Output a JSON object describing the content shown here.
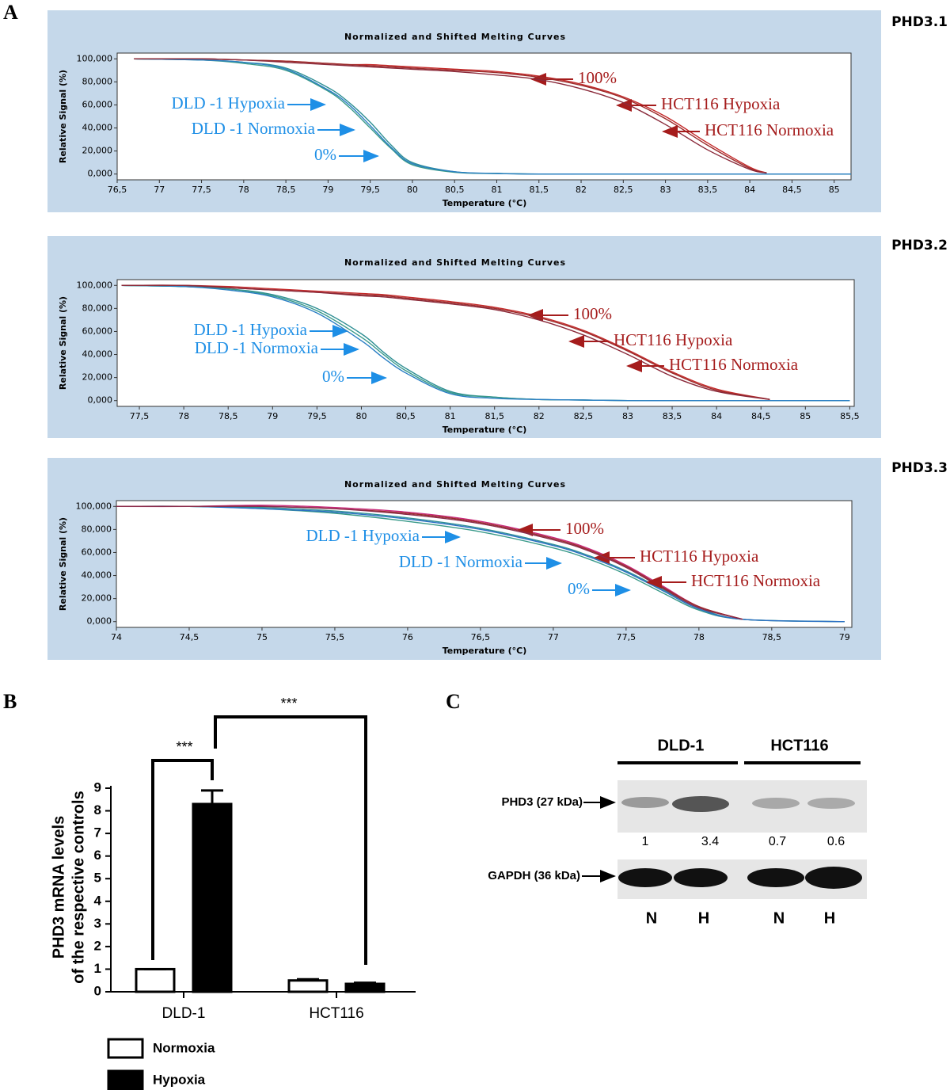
{
  "panels": [
    "A",
    "B",
    "C"
  ],
  "chart_data": [
    {
      "type": "line",
      "title": "Normalized and Shifted Melting Curves",
      "subtitle": "PHD3.1",
      "xlabel": "Temperature (°C)",
      "ylabel": "Relative Signal (%)",
      "x": [
        76.7,
        77.5,
        78,
        78.5,
        79,
        79.25,
        79.5,
        79.75,
        80,
        80.5,
        81,
        81.5,
        82,
        82.5,
        83,
        83.5,
        84,
        84.2,
        85.2
      ],
      "series": [
        {
          "name": "DLD -1 Hypoxia",
          "color": "#2f8f94",
          "values": [
            100,
            99,
            97,
            92,
            75,
            62,
            45,
            25,
            10,
            2,
            0.5,
            0,
            0,
            0,
            0,
            0,
            0,
            0,
            0
          ]
        },
        {
          "name": "DLD -1 Normoxia",
          "color": "#3a9a8a",
          "values": [
            100,
            99,
            96,
            90,
            72,
            58,
            40,
            22,
            8,
            1.5,
            0.5,
            0,
            0,
            0,
            0,
            0,
            0,
            0,
            0
          ]
        },
        {
          "name": "0%",
          "color": "#2a7fc4",
          "values": [
            100,
            99,
            97,
            91,
            73,
            60,
            42,
            23,
            9,
            2,
            0.5,
            0,
            0,
            0,
            0,
            0,
            0,
            0,
            0
          ]
        },
        {
          "name": "100%",
          "color": "#c42a2a",
          "values": [
            100,
            100,
            99,
            98,
            96,
            95,
            95,
            94,
            93,
            91,
            89,
            85,
            78,
            67,
            50,
            27,
            6,
            1,
            null
          ]
        },
        {
          "name": "HCT116 Hypoxia",
          "color": "#9b2b2b",
          "values": [
            100,
            100,
            99,
            98,
            96,
            95,
            94,
            93,
            92,
            90,
            88,
            84,
            77,
            66,
            48,
            25,
            5,
            1,
            null
          ]
        },
        {
          "name": "HCT116 Normoxia",
          "color": "#8a2a3a",
          "values": [
            100,
            100,
            99,
            97,
            95,
            94,
            93,
            92,
            91,
            89,
            86,
            82,
            74,
            62,
            43,
            21,
            4,
            1,
            null
          ]
        }
      ],
      "xlim": [
        76.5,
        85.2
      ],
      "xticks": [
        {
          "value": 76.5,
          "label": "76,5"
        },
        77,
        {
          "value": 77.5,
          "label": "77,5"
        },
        78,
        {
          "value": 78.5,
          "label": "78,5"
        },
        79,
        {
          "value": 79.5,
          "label": "79,5"
        },
        80,
        {
          "value": 80.5,
          "label": "80,5"
        },
        81,
        {
          "value": 81.5,
          "label": "81,5"
        },
        82,
        {
          "value": 82.5,
          "label": "82,5"
        },
        83,
        {
          "value": 83.5,
          "label": "83,5"
        },
        84,
        {
          "value": 84.5,
          "label": "84,5"
        },
        85
      ],
      "ylim": [
        -5,
        105
      ],
      "yticks": [
        {
          "value": 0,
          "label": "0,000"
        },
        {
          "value": 20,
          "label": "20,000"
        },
        {
          "value": 40,
          "label": "40,000"
        },
        {
          "value": 60,
          "label": "60,000"
        },
        {
          "value": 80,
          "label": "80,000"
        },
        {
          "value": 100,
          "label": "100,000"
        }
      ]
    },
    {
      "type": "line",
      "title": "Normalized and Shifted Melting Curves",
      "subtitle": "PHD3.2",
      "xlabel": "Temperature (°C)",
      "ylabel": "Relative Signal (%)",
      "x": [
        77.3,
        78,
        78.5,
        79,
        79.5,
        80,
        80.25,
        80.5,
        81,
        81.5,
        82,
        82.5,
        83,
        83.5,
        84,
        84.6,
        85.5
      ],
      "series": [
        {
          "name": "DLD -1 Hypoxia",
          "color": "#2f8f94",
          "values": [
            100,
            99,
            97,
            92,
            80,
            58,
            42,
            28,
            8,
            3,
            1,
            0.5,
            0,
            0,
            0,
            0,
            0
          ]
        },
        {
          "name": "DLD -1 Normoxia",
          "color": "#3a9a8a",
          "values": [
            100,
            99,
            97,
            91,
            78,
            55,
            40,
            26,
            7,
            3,
            1,
            0.5,
            0,
            0,
            0,
            0,
            0
          ]
        },
        {
          "name": "0%",
          "color": "#2a7fc4",
          "values": [
            100,
            99,
            96,
            90,
            76,
            52,
            37,
            24,
            6,
            2,
            1,
            0.5,
            0,
            0,
            0,
            0,
            0
          ]
        },
        {
          "name": "100%",
          "color": "#c42a2a",
          "values": [
            100,
            100,
            99,
            97,
            95,
            93,
            92,
            90,
            86,
            81,
            73,
            61,
            44,
            25,
            10,
            1,
            null
          ]
        },
        {
          "name": "HCT116 Hypoxia",
          "color": "#9b2b2b",
          "values": [
            100,
            100,
            98,
            96,
            94,
            92,
            91,
            89,
            85,
            80,
            72,
            60,
            43,
            24,
            9,
            1,
            null
          ]
        },
        {
          "name": "HCT116 Normoxia",
          "color": "#8a2a3a",
          "values": [
            100,
            100,
            98,
            96,
            94,
            91,
            90,
            88,
            84,
            79,
            70,
            57,
            40,
            21,
            8,
            1,
            null
          ]
        }
      ],
      "xlim": [
        77.25,
        85.55
      ],
      "xticks": [
        {
          "value": 77.5,
          "label": "77,5"
        },
        78,
        {
          "value": 78.5,
          "label": "78,5"
        },
        79,
        {
          "value": 79.5,
          "label": "79,5"
        },
        80,
        {
          "value": 80.5,
          "label": "80,5"
        },
        81,
        {
          "value": 81.5,
          "label": "81,5"
        },
        82,
        {
          "value": 82.5,
          "label": "82,5"
        },
        83,
        {
          "value": 83.5,
          "label": "83,5"
        },
        84,
        {
          "value": 84.5,
          "label": "84,5"
        },
        85,
        {
          "value": 85.5,
          "label": "85,5"
        }
      ],
      "ylim": [
        -5,
        105
      ],
      "yticks": [
        {
          "value": 0,
          "label": "0,000"
        },
        {
          "value": 20,
          "label": "20,000"
        },
        {
          "value": 40,
          "label": "40,000"
        },
        {
          "value": 60,
          "label": "60,000"
        },
        {
          "value": 80,
          "label": "80,000"
        },
        {
          "value": 100,
          "label": "100,000"
        }
      ]
    },
    {
      "type": "line",
      "title": "Normalized and Shifted Melting Curves",
      "subtitle": "PHD3.3",
      "xlabel": "Temperature (°C)",
      "ylabel": "Relative Signal (%)",
      "x": [
        74,
        74.5,
        75,
        75.5,
        76,
        76.5,
        77,
        77.25,
        77.5,
        77.75,
        78,
        78.3,
        79
      ],
      "series": [
        {
          "name": "DLD -1 Hypoxia",
          "color": "#2f8f94",
          "values": [
            100,
            100,
            99,
            96,
            90,
            81,
            67,
            57,
            44,
            28,
            12,
            2,
            0
          ]
        },
        {
          "name": "DLD -1 Normoxia",
          "color": "#3a9a8a",
          "values": [
            100,
            100,
            98,
            94,
            87,
            78,
            64,
            54,
            41,
            25,
            10,
            2,
            0
          ]
        },
        {
          "name": "0%",
          "color": "#2a6fc4",
          "values": [
            100,
            100,
            98,
            95,
            89,
            80,
            66,
            56,
            43,
            27,
            11,
            2,
            0
          ]
        },
        {
          "name": "100%",
          "color": "#c8287a",
          "values": [
            100,
            100,
            101,
            99,
            95,
            87,
            73,
            63,
            49,
            31,
            13,
            2,
            null
          ]
        },
        {
          "name": "HCT116 Hypoxia",
          "color": "#9b2b2b",
          "values": [
            100,
            100,
            100,
            98,
            94,
            86,
            72,
            62,
            48,
            30,
            13,
            2,
            null
          ]
        },
        {
          "name": "HCT116 Normoxia",
          "color": "#8a2a4a",
          "values": [
            100,
            100,
            100,
            98,
            93,
            85,
            71,
            61,
            47,
            29,
            12,
            2,
            null
          ]
        }
      ],
      "xlim": [
        74,
        79.05
      ],
      "xticks": [
        74,
        {
          "value": 74.5,
          "label": "74,5"
        },
        75,
        {
          "value": 75.5,
          "label": "75,5"
        },
        76,
        {
          "value": 76.5,
          "label": "76,5"
        },
        77,
        {
          "value": 77.5,
          "label": "77,5"
        },
        78,
        {
          "value": 78.5,
          "label": "78,5"
        },
        79
      ],
      "ylim": [
        -5,
        105
      ],
      "yticks": [
        {
          "value": 0,
          "label": "0,000"
        },
        {
          "value": 20,
          "label": "20,000"
        },
        {
          "value": 40,
          "label": "40,000"
        },
        {
          "value": 60,
          "label": "60,000"
        },
        {
          "value": 80,
          "label": "80,000"
        },
        {
          "value": 100,
          "label": "100,000"
        }
      ]
    },
    {
      "type": "bar",
      "ylabel": [
        "PHD3 mRNA levels",
        "of the respective controls"
      ],
      "categories": [
        "DLD-1",
        "HCT116"
      ],
      "series": [
        {
          "name": "Normoxia",
          "color": "#ffffff",
          "values": [
            1,
            0.5
          ],
          "errors": [
            0,
            0.05
          ]
        },
        {
          "name": "Hypoxia",
          "color": "#000000",
          "values": [
            8.3,
            0.35
          ],
          "errors": [
            0.6,
            0.05
          ]
        }
      ],
      "ylim": [
        0,
        9
      ],
      "yticks": [
        0,
        1,
        2,
        3,
        4,
        5,
        6,
        7,
        8,
        9
      ],
      "annotations": [
        "***",
        "***"
      ]
    }
  ],
  "blot": {
    "groups": [
      "DLD-1",
      "HCT116"
    ],
    "rows": [
      "PHD3 (27 kDa)",
      "GAPDH (36 kDa)"
    ],
    "quantification": [
      1,
      3.4,
      0.7,
      0.6
    ],
    "lanes": [
      "N",
      "H",
      "N",
      "H"
    ]
  }
}
